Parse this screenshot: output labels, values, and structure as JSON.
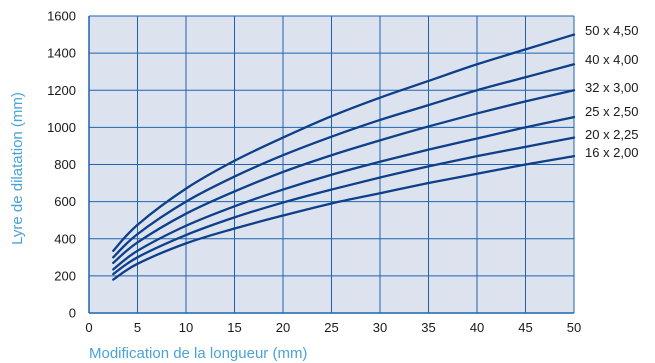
{
  "chart_data": {
    "type": "line",
    "xlabel": "Modification de la longueur (mm)",
    "ylabel": "Lyre de dilatation (mm)",
    "xlim": [
      0,
      50
    ],
    "ylim": [
      0,
      1600
    ],
    "x_ticks": [
      "0",
      "5",
      "10",
      "15",
      "20",
      "25",
      "30",
      "35",
      "40",
      "45",
      "50"
    ],
    "y_ticks": [
      "0",
      "200",
      "400",
      "600",
      "800",
      "1000",
      "1200",
      "1400",
      "1600"
    ],
    "grid": true,
    "x": [
      2.5,
      5,
      10,
      15,
      20,
      25,
      30,
      35,
      40,
      45,
      50
    ],
    "series": [
      {
        "name": "50 x 4,50",
        "values": [
          335,
          475,
          670,
          820,
          945,
          1060,
          1160,
          1250,
          1340,
          1420,
          1500
        ]
      },
      {
        "name": "40 x 4,00",
        "values": [
          300,
          425,
          600,
          735,
          850,
          950,
          1040,
          1120,
          1200,
          1270,
          1340
        ]
      },
      {
        "name": "32 x 3,00",
        "values": [
          270,
          380,
          535,
          655,
          760,
          850,
          930,
          1005,
          1075,
          1140,
          1200
        ]
      },
      {
        "name": "25 x 2,50",
        "values": [
          235,
          335,
          470,
          575,
          665,
          745,
          815,
          880,
          940,
          1000,
          1055
        ]
      },
      {
        "name": "20 x 2,25",
        "values": [
          210,
          300,
          420,
          515,
          595,
          665,
          730,
          790,
          845,
          895,
          945
        ]
      },
      {
        "name": "16 x 2,00",
        "values": [
          180,
          265,
          375,
          455,
          525,
          590,
          645,
          700,
          750,
          800,
          845
        ]
      }
    ],
    "line_color": "#0d3f8a",
    "plot_background": "#dde3ee",
    "grid_color": "#1f63b0"
  }
}
